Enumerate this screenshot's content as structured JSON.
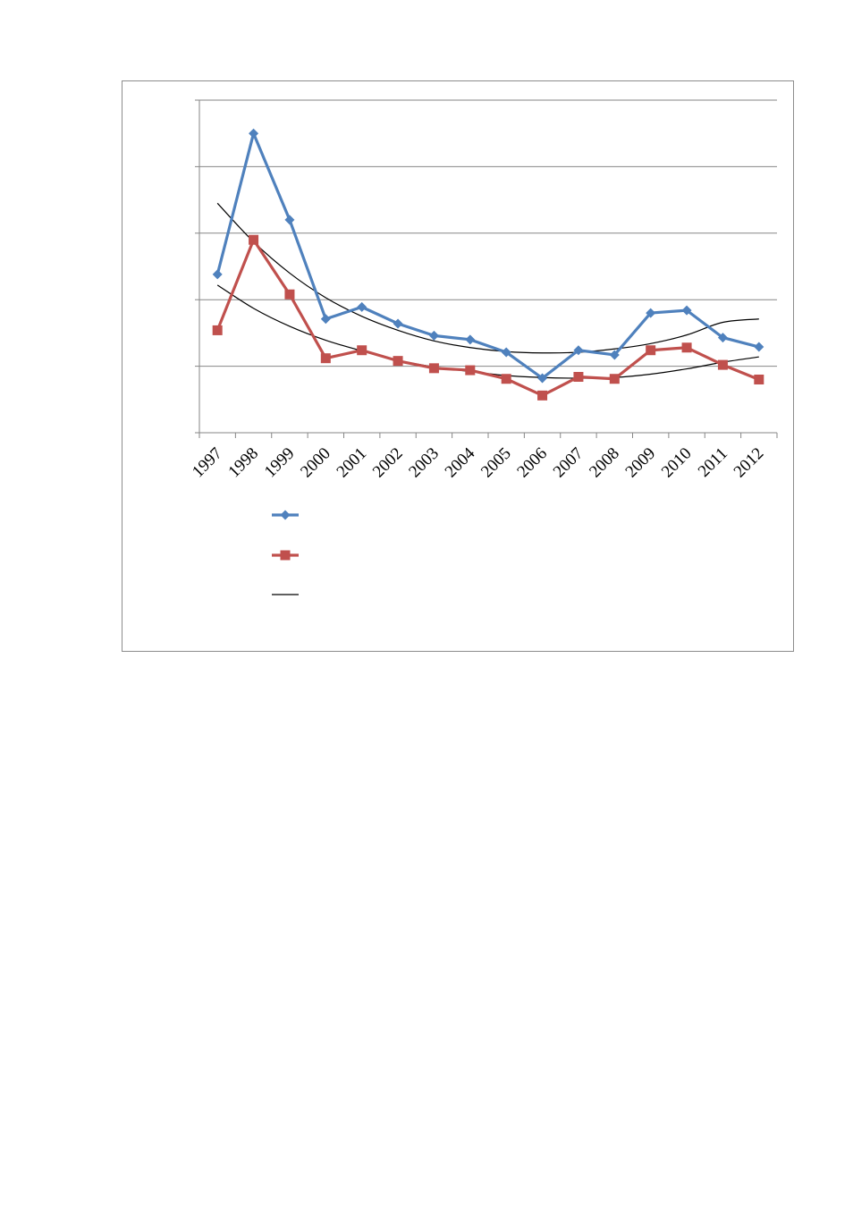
{
  "chart_data": {
    "type": "line",
    "title": "",
    "xlabel": "",
    "ylabel": "",
    "categories": [
      "1997",
      "1998",
      "1999",
      "2000",
      "2001",
      "2002",
      "2003",
      "2004",
      "2005",
      "2006",
      "2007",
      "2008",
      "2009",
      "2010",
      "2011",
      "2012"
    ],
    "ylim": [
      0,
      5
    ],
    "y_gridlines": [
      1,
      2,
      3,
      4,
      5
    ],
    "y_tick_labels_shown": false,
    "grid": true,
    "legend_position": "bottom-left",
    "series": [
      {
        "marker": "diamond",
        "color": "#4f81bd",
        "values": [
          2.38,
          4.5,
          3.2,
          1.71,
          1.89,
          1.64,
          1.46,
          1.4,
          1.21,
          0.82,
          1.24,
          1.17,
          1.8,
          1.84,
          1.43,
          1.29
        ]
      },
      {
        "marker": "square",
        "color": "#c0504d",
        "values": [
          1.54,
          2.9,
          2.08,
          1.12,
          1.24,
          1.08,
          0.97,
          0.94,
          0.81,
          0.56,
          0.84,
          0.81,
          1.24,
          1.28,
          1.02,
          0.8
        ]
      }
    ],
    "trendlines": [
      {
        "type": "polynomial",
        "color": "#000000",
        "values": [
          3.45,
          2.87,
          2.4,
          2.03,
          1.75,
          1.54,
          1.38,
          1.28,
          1.22,
          1.2,
          1.21,
          1.26,
          1.34,
          1.47,
          1.66,
          1.71
        ]
      },
      {
        "type": "polynomial",
        "color": "#000000",
        "values": [
          2.22,
          1.87,
          1.6,
          1.39,
          1.23,
          1.09,
          0.99,
          0.92,
          0.86,
          0.83,
          0.82,
          0.83,
          0.88,
          0.96,
          1.06,
          1.14
        ]
      }
    ],
    "legend": [
      {
        "marker": "diamond",
        "color": "#4f81bd"
      },
      {
        "marker": "square",
        "color": "#c0504d"
      },
      {
        "marker": "line",
        "color": "#000000"
      }
    ]
  }
}
